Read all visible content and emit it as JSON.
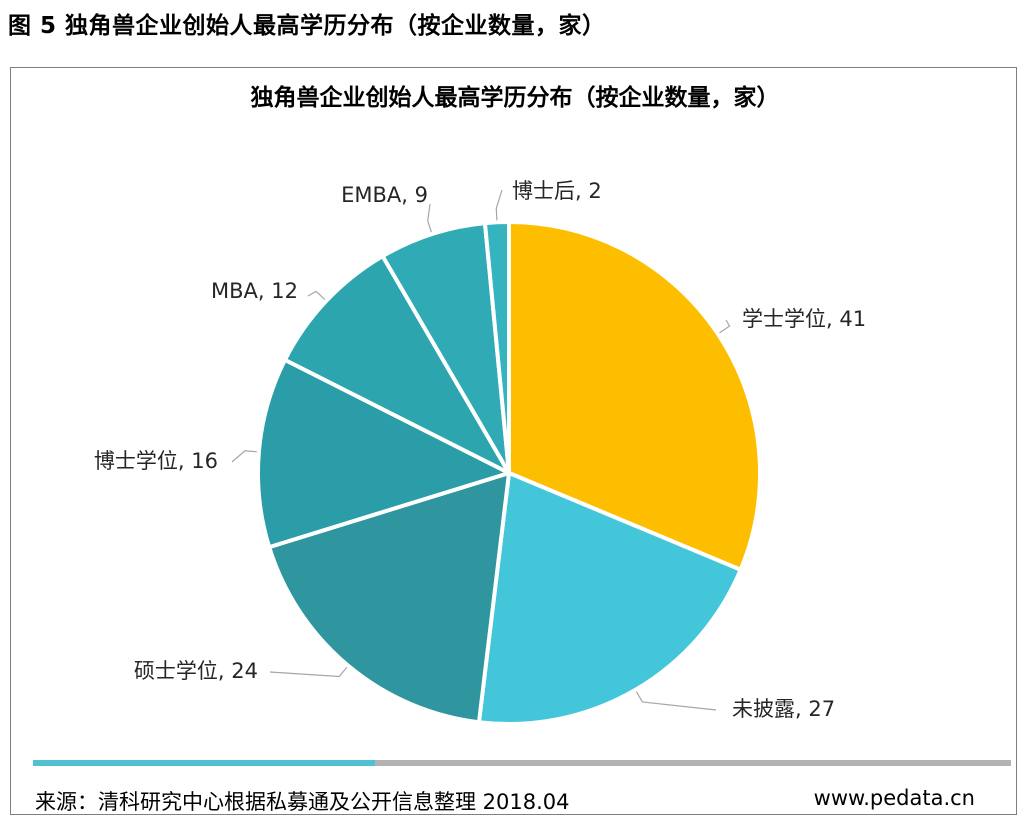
{
  "figure_title": "图 5 独角兽企业创始人最高学历分布（按企业数量，家）",
  "chart_data": {
    "type": "pie",
    "title": "独角兽企业创始人最高学历分布（按企业数量，家）",
    "slices": [
      {
        "label": "学士学位",
        "value": 41,
        "color": "#FDBE00"
      },
      {
        "label": "未披露",
        "value": 27,
        "color": "#43C6D9"
      },
      {
        "label": "硕士学位",
        "value": 24,
        "color": "#2F959E"
      },
      {
        "label": "博士学位",
        "value": 16,
        "color": "#2A9DA8"
      },
      {
        "label": "MBA",
        "value": 12,
        "color": "#2DA5AF"
      },
      {
        "label": "EMBA",
        "value": 9,
        "color": "#30ABB5"
      },
      {
        "label": "博士后",
        "value": 2,
        "color": "#35B3BE"
      }
    ]
  },
  "progress": {
    "fraction": 0.35
  },
  "footer": {
    "source": "来源：清科研究中心根据私募通及公开信息整理  2018.04",
    "website": "www.pedata.cn"
  }
}
